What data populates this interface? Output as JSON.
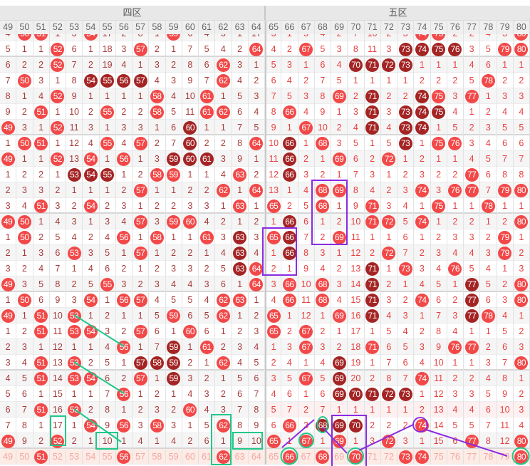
{
  "zones": [
    {
      "label": "四区"
    },
    {
      "label": "五区"
    }
  ],
  "columns": [
    "49",
    "50",
    "51",
    "52",
    "53",
    "54",
    "55",
    "56",
    "57",
    "58",
    "59",
    "60",
    "61",
    "62",
    "63",
    "64",
    "65",
    "66",
    "67",
    "68",
    "69",
    "70",
    "71",
    "72",
    "73",
    "74",
    "75",
    "76",
    "77",
    "78",
    "79",
    "80"
  ],
  "colors": {
    "ball": "#f24848",
    "ball_dark": "#a42424",
    "zone4_text": "#a83a3a",
    "zone5_text": "#e8403f",
    "highlight_green": "#22c78a",
    "highlight_purple": "#8a2be2"
  },
  "rows": [
    {
      "cells": [
        "4",
        "50",
        "51",
        "1",
        "3",
        "54",
        "17",
        "2",
        "8",
        "1",
        "59",
        "6",
        "4",
        "3",
        "1",
        "17",
        "3",
        "1",
        "5",
        "4",
        "2",
        "7",
        "10",
        "2",
        "3",
        "74",
        "75",
        "2",
        "2",
        "4",
        "3",
        "80"
      ],
      "dark": []
    },
    {
      "cells": [
        "5",
        "1",
        "1",
        "52",
        "6",
        "1",
        "18",
        "3",
        "57",
        "2",
        "1",
        "7",
        "5",
        "4",
        "2",
        "64",
        "4",
        "2",
        "67",
        "5",
        "3",
        "8",
        "11",
        "3",
        "73",
        "74",
        "75",
        "76",
        "3",
        "5",
        "79",
        "80"
      ],
      "dark": [
        "73",
        "74",
        "75",
        "76"
      ]
    },
    {
      "cells": [
        "6",
        "2",
        "2",
        "52",
        "7",
        "2",
        "19",
        "4",
        "1",
        "3",
        "2",
        "8",
        "6",
        "62",
        "3",
        "1",
        "5",
        "3",
        "1",
        "6",
        "4",
        "70",
        "71",
        "72",
        "73",
        "1",
        "1",
        "1",
        "4",
        "6",
        "1",
        "1"
      ],
      "dark": [
        "70",
        "71",
        "72",
        "73"
      ]
    },
    {
      "cells": [
        "7",
        "50",
        "3",
        "1",
        "8",
        "54",
        "55",
        "56",
        "57",
        "4",
        "3",
        "9",
        "7",
        "62",
        "4",
        "2",
        "6",
        "4",
        "2",
        "7",
        "5",
        "1",
        "1",
        "1",
        "1",
        "2",
        "2",
        "2",
        "5",
        "78",
        "2",
        "2"
      ],
      "dark": [
        "54",
        "55",
        "56",
        "57"
      ]
    },
    {
      "cells": [
        "8",
        "1",
        "4",
        "52",
        "9",
        "1",
        "1",
        "1",
        "1",
        "58",
        "4",
        "10",
        "61",
        "1",
        "5",
        "3",
        "7",
        "5",
        "3",
        "8",
        "69",
        "2",
        "71",
        "2",
        "2",
        "74",
        "75",
        "3",
        "77",
        "1",
        "3",
        "3"
      ],
      "dark": [
        "71",
        "74"
      ]
    },
    {
      "cells": [
        "9",
        "2",
        "51",
        "1",
        "10",
        "2",
        "55",
        "2",
        "2",
        "58",
        "5",
        "11",
        "61",
        "62",
        "6",
        "4",
        "8",
        "66",
        "4",
        "9",
        "1",
        "3",
        "71",
        "3",
        "73",
        "74",
        "75",
        "4",
        "1",
        "2",
        "4",
        "4"
      ],
      "dark": [
        "71",
        "73",
        "74",
        "75"
      ]
    },
    {
      "cells": [
        "49",
        "3",
        "1",
        "52",
        "11",
        "3",
        "1",
        "3",
        "3",
        "1",
        "6",
        "60",
        "1",
        "1",
        "7",
        "5",
        "9",
        "1",
        "67",
        "10",
        "2",
        "4",
        "71",
        "4",
        "73",
        "74",
        "1",
        "5",
        "2",
        "3",
        "5",
        "5"
      ],
      "dark": [
        "60",
        "71",
        "73",
        "74"
      ]
    },
    {
      "cells": [
        "1",
        "50",
        "51",
        "1",
        "12",
        "4",
        "55",
        "4",
        "57",
        "2",
        "7",
        "60",
        "2",
        "2",
        "8",
        "64",
        "10",
        "66",
        "1",
        "68",
        "3",
        "5",
        "1",
        "5",
        "73",
        "1",
        "75",
        "76",
        "3",
        "4",
        "6",
        "6"
      ],
      "dark": [
        "60",
        "66",
        "73"
      ]
    },
    {
      "cells": [
        "49",
        "1",
        "1",
        "52",
        "13",
        "54",
        "1",
        "56",
        "1",
        "3",
        "59",
        "60",
        "61",
        "3",
        "9",
        "1",
        "11",
        "66",
        "2",
        "1",
        "69",
        "6",
        "2",
        "72",
        "1",
        "2",
        "1",
        "1",
        "4",
        "5",
        "7",
        "7"
      ],
      "dark": [
        "59",
        "60",
        "61",
        "66"
      ]
    },
    {
      "cells": [
        "1",
        "2",
        "2",
        "1",
        "53",
        "54",
        "55",
        "1",
        "2",
        "58",
        "59",
        "1",
        "1",
        "4",
        "63",
        "2",
        "12",
        "66",
        "3",
        "2",
        "1",
        "7",
        "3",
        "1",
        "2",
        "3",
        "2",
        "2",
        "77",
        "6",
        "8",
        "8"
      ],
      "dark": [
        "53",
        "54",
        "55",
        "66"
      ]
    },
    {
      "cells": [
        "2",
        "3",
        "3",
        "2",
        "1",
        "1",
        "1",
        "2",
        "57",
        "1",
        "1",
        "2",
        "2",
        "62",
        "1",
        "64",
        "13",
        "1",
        "4",
        "68",
        "69",
        "8",
        "4",
        "2",
        "3",
        "74",
        "3",
        "76",
        "77",
        "7",
        "79",
        "80"
      ],
      "dark": []
    },
    {
      "cells": [
        "3",
        "4",
        "51",
        "3",
        "2",
        "54",
        "2",
        "3",
        "1",
        "2",
        "2",
        "3",
        "3",
        "1",
        "63",
        "1",
        "65",
        "2",
        "5",
        "68",
        "1",
        "9",
        "71",
        "3",
        "4",
        "1",
        "75",
        "1",
        "1",
        "78",
        "1",
        "1"
      ],
      "dark": []
    },
    {
      "cells": [
        "49",
        "50",
        "1",
        "4",
        "3",
        "1",
        "3",
        "4",
        "57",
        "3",
        "59",
        "60",
        "4",
        "2",
        "1",
        "2",
        "1",
        "66",
        "6",
        "1",
        "2",
        "10",
        "71",
        "72",
        "5",
        "74",
        "1",
        "2",
        "2",
        "1",
        "2",
        "80"
      ],
      "dark": [
        "66"
      ]
    },
    {
      "cells": [
        "1",
        "50",
        "2",
        "5",
        "4",
        "2",
        "4",
        "56",
        "1",
        "58",
        "1",
        "1",
        "61",
        "3",
        "63",
        "3",
        "65",
        "66",
        "7",
        "2",
        "69",
        "11",
        "1",
        "1",
        "6",
        "1",
        "2",
        "3",
        "3",
        "2",
        "79",
        "1"
      ],
      "dark": [
        "63",
        "66"
      ]
    },
    {
      "cells": [
        "2",
        "1",
        "3",
        "6",
        "53",
        "3",
        "5",
        "1",
        "57",
        "1",
        "2",
        "2",
        "1",
        "4",
        "63",
        "4",
        "1",
        "66",
        "8",
        "3",
        "1",
        "12",
        "2",
        "72",
        "7",
        "2",
        "3",
        "4",
        "4",
        "3",
        "79",
        "2"
      ],
      "dark": [
        "63",
        "66"
      ]
    },
    {
      "cells": [
        "3",
        "2",
        "4",
        "7",
        "1",
        "4",
        "6",
        "2",
        "1",
        "2",
        "3",
        "3",
        "2",
        "5",
        "63",
        "64",
        "2",
        "1",
        "9",
        "4",
        "2",
        "13",
        "71",
        "1",
        "73",
        "3",
        "4",
        "76",
        "5",
        "4",
        "1",
        "3"
      ],
      "dark": [
        "63",
        "71"
      ]
    },
    {
      "cells": [
        "49",
        "3",
        "5",
        "8",
        "2",
        "5",
        "55",
        "3",
        "2",
        "3",
        "4",
        "4",
        "3",
        "6",
        "1",
        "64",
        "3",
        "66",
        "10",
        "68",
        "3",
        "14",
        "71",
        "2",
        "1",
        "4",
        "5",
        "1",
        "77",
        "5",
        "2",
        "80"
      ],
      "dark": [
        "71",
        "77"
      ]
    },
    {
      "cells": [
        "1",
        "50",
        "6",
        "9",
        "3",
        "54",
        "1",
        "56",
        "57",
        "4",
        "5",
        "5",
        "4",
        "62",
        "63",
        "1",
        "4",
        "66",
        "11",
        "68",
        "4",
        "15",
        "71",
        "3",
        "2",
        "74",
        "6",
        "2",
        "77",
        "6",
        "3",
        "80"
      ],
      "dark": [
        "71",
        "77"
      ]
    },
    {
      "cells": [
        "49",
        "1",
        "51",
        "10",
        "53",
        "1",
        "2",
        "1",
        "1",
        "5",
        "59",
        "6",
        "5",
        "62",
        "1",
        "2",
        "65",
        "1",
        "12",
        "1",
        "69",
        "16",
        "71",
        "4",
        "3",
        "1",
        "7",
        "3",
        "77",
        "78",
        "4",
        "1"
      ],
      "dark": [
        "71",
        "77"
      ]
    },
    {
      "cells": [
        "1",
        "2",
        "51",
        "11",
        "53",
        "54",
        "3",
        "2",
        "57",
        "6",
        "1",
        "60",
        "6",
        "1",
        "2",
        "3",
        "65",
        "2",
        "67",
        "2",
        "1",
        "17",
        "1",
        "5",
        "4",
        "2",
        "8",
        "4",
        "1",
        "1",
        "5",
        "2"
      ],
      "dark": []
    },
    {
      "cells": [
        "2",
        "3",
        "1",
        "12",
        "1",
        "1",
        "4",
        "56",
        "1",
        "7",
        "59",
        "1",
        "61",
        "2",
        "3",
        "4",
        "1",
        "3",
        "67",
        "3",
        "2",
        "18",
        "71",
        "6",
        "5",
        "3",
        "9",
        "76",
        "77",
        "2",
        "6",
        "3"
      ],
      "dark": [
        "59"
      ]
    },
    {
      "cells": [
        "3",
        "4",
        "51",
        "13",
        "53",
        "2",
        "5",
        "1",
        "57",
        "58",
        "59",
        "2",
        "1",
        "62",
        "4",
        "5",
        "2",
        "4",
        "1",
        "4",
        "69",
        "19",
        "1",
        "7",
        "6",
        "4",
        "10",
        "1",
        "1",
        "3",
        "7",
        "80"
      ],
      "dark": [
        "57",
        "58",
        "59",
        "69"
      ]
    },
    {
      "cells": [
        "4",
        "5",
        "51",
        "14",
        "53",
        "54",
        "6",
        "2",
        "57",
        "1",
        "59",
        "3",
        "2",
        "1",
        "5",
        "6",
        "3",
        "5",
        "67",
        "5",
        "69",
        "20",
        "2",
        "8",
        "7",
        "74",
        "11",
        "2",
        "2",
        "4",
        "8",
        "1"
      ],
      "dark": [
        "59",
        "69"
      ]
    },
    {
      "cells": [
        "5",
        "6",
        "1",
        "15",
        "1",
        "1",
        "7",
        "56",
        "1",
        "2",
        "1",
        "4",
        "3",
        "2",
        "6",
        "7",
        "4",
        "6",
        "1",
        "6",
        "69",
        "70",
        "71",
        "72",
        "73",
        "1",
        "12",
        "3",
        "3",
        "5",
        "9",
        "2"
      ],
      "dark": [
        "69",
        "70",
        "71",
        "72",
        "73"
      ]
    },
    {
      "cells": [
        "6",
        "7",
        "51",
        "16",
        "53",
        "2",
        "8",
        "1",
        "2",
        "3",
        "2",
        "60",
        "4",
        "3",
        "7",
        "8",
        "5",
        "7",
        "2",
        "7",
        "1",
        "1",
        "1",
        "1",
        "1",
        "2",
        "13",
        "4",
        "4",
        "6",
        "10",
        "3"
      ],
      "dark": []
    },
    {
      "cells": [
        "7",
        "8",
        "1",
        "17",
        "1",
        "54",
        "9",
        "56",
        "3",
        "58",
        "3",
        "1",
        "5",
        "62",
        "8",
        "9",
        "6",
        "66",
        "3",
        "68",
        "69",
        "70",
        "2",
        "2",
        "2",
        "74",
        "14",
        "5",
        "5",
        "7",
        "11",
        "4"
      ],
      "dark": [
        "68",
        "69",
        "70"
      ]
    },
    {
      "cells": [
        "49",
        "9",
        "2",
        "52",
        "2",
        "1",
        "10",
        "1",
        "4",
        "1",
        "4",
        "2",
        "6",
        "1",
        "9",
        "10",
        "65",
        "1",
        "67",
        "1",
        "69",
        "1",
        "3",
        "72",
        "3",
        "1",
        "15",
        "6",
        "77",
        "8",
        "12",
        "80"
      ],
      "dark": []
    },
    {
      "cells": [
        "49",
        "50",
        "51",
        "52",
        "53",
        "54",
        "55",
        "56",
        "57",
        "58",
        "59",
        "60",
        "61",
        "62",
        "63",
        "64",
        "65",
        "66",
        "67",
        "68",
        "69",
        "70",
        "71",
        "72",
        "73",
        "74",
        "75",
        "76",
        "77",
        "78",
        "79",
        "80"
      ],
      "dark": [],
      "selected": [
        "51",
        "56",
        "62",
        "66",
        "68",
        "70",
        "73",
        "74",
        "80"
      ]
    }
  ]
}
